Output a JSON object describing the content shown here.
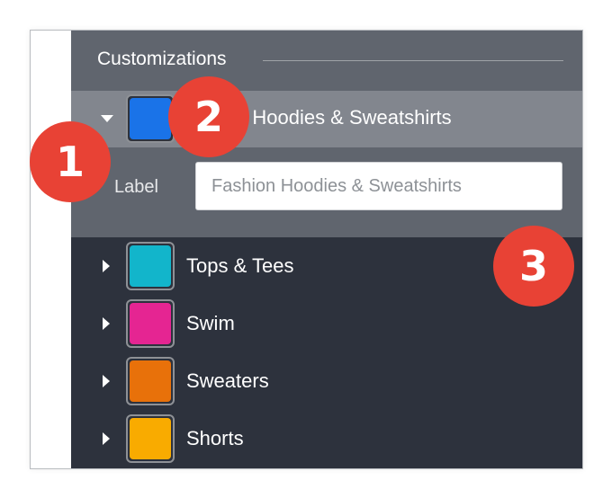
{
  "panel": {
    "title": "Customizations",
    "selected": {
      "label": "Fashion Hoodies & Sweatshirts",
      "visible_label": "n Hoodies & Sweatshirts",
      "color": "#1a73e8",
      "expanded": true,
      "field_label": "Label",
      "field_placeholder": "Fashion Hoodies & Sweatshirts"
    },
    "items": [
      {
        "label": "Tops & Tees",
        "color": "#12b5cb"
      },
      {
        "label": "Swim",
        "color": "#e52592"
      },
      {
        "label": "Sweaters",
        "color": "#e8710a"
      },
      {
        "label": "Shorts",
        "color": "#f9ab00"
      }
    ]
  },
  "callouts": [
    "1",
    "2",
    "3"
  ],
  "callout_color": "#e84235"
}
